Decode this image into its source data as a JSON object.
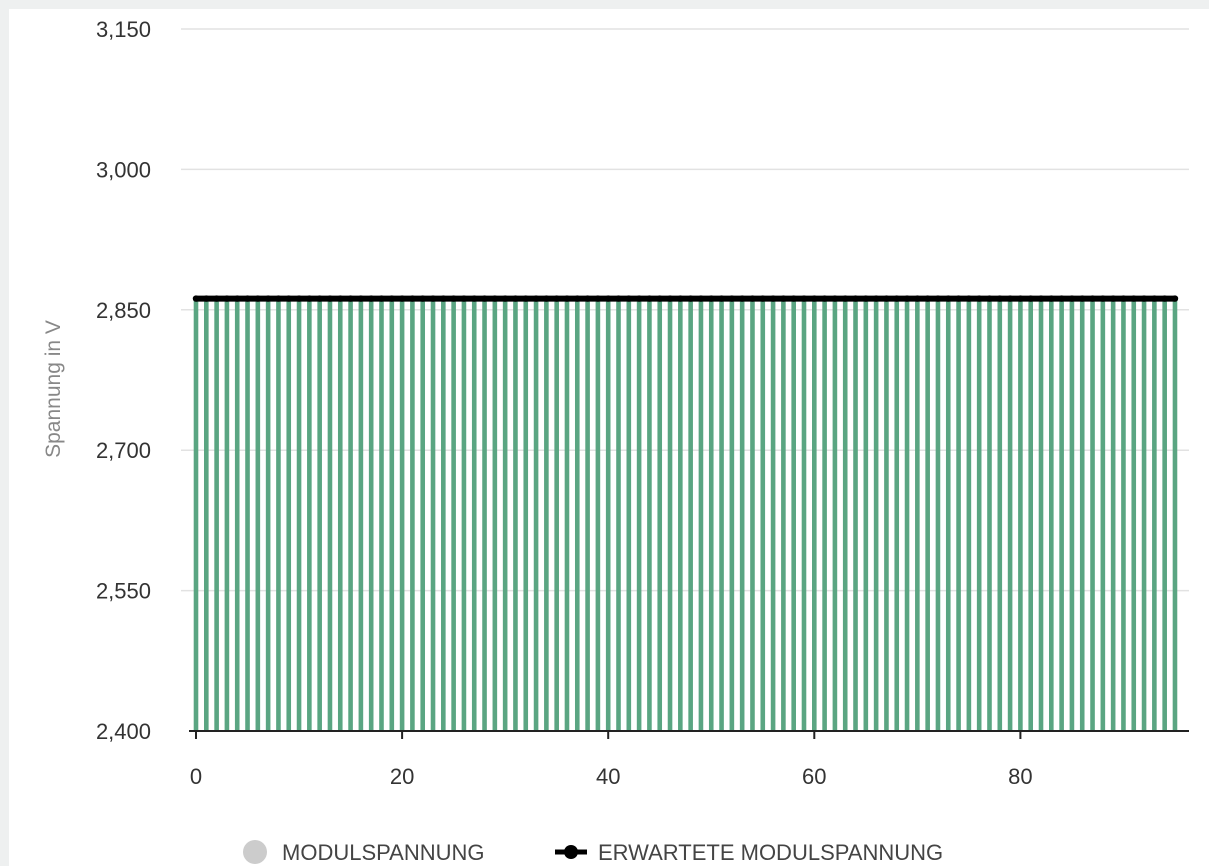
{
  "chart_data": {
    "type": "bar",
    "ylabel": "Spannung in V",
    "xlabel": "",
    "ylim": [
      2400,
      3150
    ],
    "yticks": [
      2400,
      2550,
      2700,
      2850,
      3000,
      3150
    ],
    "ytick_labels": [
      "2,400",
      "2,550",
      "2,700",
      "2,850",
      "3,000",
      "3,150"
    ],
    "xlim": [
      0,
      95
    ],
    "xticks": [
      0,
      20,
      40,
      60,
      80
    ],
    "xtick_labels": [
      "0",
      "20",
      "40",
      "60",
      "80"
    ],
    "grid": "horizontal dashed",
    "legend_position": "bottom",
    "series": [
      {
        "name": "MODULSPANNUNG",
        "kind": "bar",
        "color": "#5aa582",
        "x_start": 0,
        "x_end": 95,
        "value": 2860
      },
      {
        "name": "ERWARTETE MODULSPANNUNG",
        "kind": "line",
        "color": "#000000",
        "x_start": 0,
        "x_end": 95,
        "value": 2862
      }
    ],
    "legend": [
      {
        "label": "MODULSPANNUNG",
        "marker": "circle",
        "color": "#cccccc"
      },
      {
        "label": "ERWARTETE MODULSPANNUNG",
        "marker": "line-dot",
        "color": "#000000"
      }
    ]
  }
}
